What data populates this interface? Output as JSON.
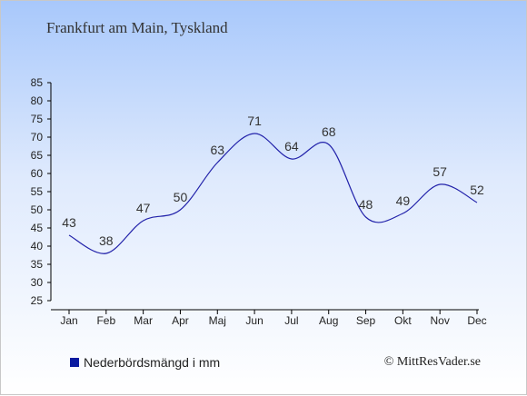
{
  "title": "Frankfurt am Main, Tyskland",
  "legend_label": "Nederbördsmängd i mm",
  "copyright": "© MittResVader.se",
  "colors": {
    "line": "#2222aa",
    "legend_swatch": "#0a1aa0"
  },
  "chart_data": {
    "type": "line",
    "title": "Frankfurt am Main, Tyskland",
    "xlabel": "",
    "ylabel": "",
    "categories": [
      "Jan",
      "Feb",
      "Mar",
      "Apr",
      "Maj",
      "Jun",
      "Jul",
      "Aug",
      "Sep",
      "Okt",
      "Nov",
      "Dec"
    ],
    "series": [
      {
        "name": "Nederbördsmängd i mm",
        "values": [
          43,
          38,
          47,
          50,
          63,
          71,
          64,
          68,
          48,
          49,
          57,
          52
        ]
      }
    ],
    "ylim": [
      25,
      85
    ],
    "yticks": [
      25,
      30,
      35,
      40,
      45,
      50,
      55,
      60,
      65,
      70,
      75,
      80,
      85
    ],
    "grid": false,
    "legend_position": "bottom-left"
  }
}
